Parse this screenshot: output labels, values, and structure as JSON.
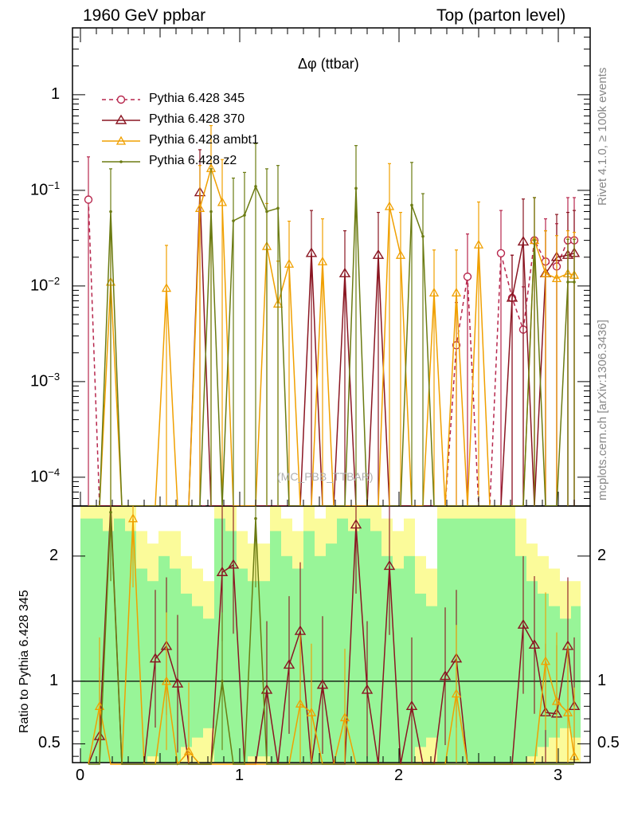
{
  "header": {
    "left": "1960 GeV ppbar",
    "right": "Top (parton level)"
  },
  "side": {
    "rivet": "Rivet 4.1.0, ≥ 100k events",
    "mcplots": "mcplots.cern.ch [arXiv:1306.3436]"
  },
  "colors": {
    "p345": "#b7274d",
    "p370": "#8a1622",
    "ambt1": "#f0a000",
    "z2": "#6b7b12",
    "band_green": "#98f598",
    "band_yellow": "#fbfb9a"
  },
  "chart_data": {
    "type": "line",
    "title": "Δφ (ttbar)",
    "analysis_tag": "(MC_PBB_TTBAR)",
    "xlabel": "",
    "ylabel_ratio": "Ratio to Pythia 6.428 345",
    "xlim": [
      -0.05,
      3.2
    ],
    "ylim": [
      5e-05,
      5
    ],
    "yscale": "log",
    "ratio_ylim": [
      0.35,
      2.4
    ],
    "x_ticks": [
      "0",
      "1",
      "2",
      "3"
    ],
    "y_ticks": [
      "10^-4",
      "10^-3",
      "10^-2",
      "10^-1",
      "1"
    ],
    "ratio_ticks": [
      "0.5",
      "1",
      "2"
    ],
    "legend_position": "top-left",
    "x": [
      0.05,
      0.12,
      0.19,
      0.26,
      0.33,
      0.4,
      0.47,
      0.54,
      0.61,
      0.68,
      0.75,
      0.82,
      0.89,
      0.96,
      1.03,
      1.1,
      1.17,
      1.24,
      1.31,
      1.38,
      1.45,
      1.52,
      1.59,
      1.66,
      1.73,
      1.8,
      1.87,
      1.94,
      2.01,
      2.08,
      2.15,
      2.22,
      2.29,
      2.36,
      2.43,
      2.5,
      2.57,
      2.64,
      2.71,
      2.78,
      2.85,
      2.92,
      2.99,
      3.06,
      3.1
    ],
    "series": [
      {
        "name": "Pythia 6.428 345",
        "style": "dashed",
        "marker": "circle",
        "values": [
          0.08,
          0,
          0,
          0,
          0,
          0,
          0,
          0,
          0,
          0,
          0,
          0,
          0,
          0,
          0,
          0,
          0,
          0,
          0,
          0,
          0,
          0,
          0,
          0,
          0,
          0,
          0,
          0,
          0,
          0,
          0,
          0,
          0,
          0.0024,
          0.0125,
          0,
          0,
          0.022,
          0.0075,
          0.0035,
          0.03,
          0.018,
          0.016,
          0.03,
          0.03
        ]
      },
      {
        "name": "Pythia 6.428 370",
        "style": "solid",
        "marker": "triangle-open",
        "values": [
          0,
          0,
          0,
          0,
          0,
          0,
          0,
          0,
          0,
          0,
          0.095,
          0,
          0,
          0,
          0,
          0,
          0,
          0,
          0,
          0,
          0.022,
          0,
          0,
          0.0135,
          0,
          0,
          0.021,
          0,
          0,
          0,
          0,
          0,
          0,
          0,
          0,
          0,
          0,
          0,
          0.0075,
          0.029,
          0,
          0.0135,
          0.02,
          0.021,
          0.022
        ]
      },
      {
        "name": "Pythia 6.428 ambt1",
        "style": "solid",
        "marker": "triangle",
        "values": [
          0,
          0,
          0.011,
          0,
          0,
          0,
          0,
          0.0095,
          0,
          0,
          0.065,
          0.17,
          0.075,
          0,
          0,
          0,
          0.026,
          0.0065,
          0.017,
          0,
          0,
          0.018,
          0,
          0,
          0,
          0,
          0,
          0.068,
          0.021,
          0,
          0,
          0.0085,
          0,
          0.0085,
          0,
          0.027,
          0,
          0,
          0,
          0,
          0.03,
          0.0135,
          0.012,
          0.0135,
          0.013
        ]
      },
      {
        "name": "Pythia 6.428 z2",
        "style": "solid",
        "marker": "dot",
        "values": [
          0,
          0,
          0.06,
          0,
          0,
          0,
          0,
          0,
          0,
          0,
          0,
          0.06,
          0,
          0.048,
          0.055,
          0.11,
          0.06,
          0.065,
          0,
          0,
          0,
          0,
          0,
          0,
          0.105,
          0,
          0,
          0,
          0,
          0.07,
          0.033,
          0,
          0,
          0,
          0,
          0,
          0,
          0,
          0,
          0,
          0.03,
          0,
          0,
          0.011,
          0.011
        ]
      }
    ],
    "ratio_series": {
      "Pythia 6.428 370": [
        0,
        0.56,
        2.4,
        0,
        0,
        0,
        1.18,
        1.28,
        0.98,
        0,
        0,
        0,
        1.87,
        1.93,
        0,
        0,
        0.93,
        0,
        1.13,
        1.4,
        0,
        0.97,
        0,
        0,
        2.25,
        0.93,
        0,
        1.92,
        0,
        0.8,
        0,
        0,
        1.04,
        1.18,
        0,
        0,
        0,
        0,
        0,
        1.45,
        1.29,
        0.75,
        0.74,
        1.28,
        0.8
      ],
      "Pythia 6.428 ambt1": [
        0,
        0.8,
        0,
        0,
        2.3,
        0,
        0,
        1.0,
        0,
        0.44,
        0,
        0,
        0,
        0,
        0,
        0,
        0,
        0,
        0,
        0.82,
        0.75,
        0,
        0,
        0.71,
        0,
        0,
        0,
        0,
        0,
        0,
        0,
        0,
        0,
        0.9,
        0,
        0,
        0,
        0,
        0,
        0,
        0,
        1.16,
        0.84,
        0.75,
        0.4
      ],
      "Pythia 6.428 z2": [
        0,
        0,
        2.35,
        0,
        0,
        0,
        0,
        0,
        0,
        0,
        0,
        0,
        1.0,
        0,
        0,
        2.3,
        0,
        0,
        0,
        0,
        0,
        0,
        0,
        0,
        0,
        0,
        0,
        0,
        0,
        0,
        0,
        0,
        0,
        0,
        0,
        0,
        0,
        0,
        0,
        0,
        0,
        0,
        0,
        0,
        0
      ]
    },
    "ratio_band": {
      "x_edges": [
        0.0,
        0.07,
        0.14,
        0.21,
        0.28,
        0.35,
        0.42,
        0.49,
        0.56,
        0.63,
        0.7,
        0.77,
        0.84,
        0.91,
        0.98,
        1.05,
        1.12,
        1.19,
        1.26,
        1.33,
        1.4,
        1.47,
        1.54,
        1.61,
        1.68,
        1.75,
        1.82,
        1.89,
        1.96,
        2.03,
        2.1,
        2.17,
        2.24,
        2.31,
        2.38,
        2.45,
        2.52,
        2.59,
        2.66,
        2.73,
        2.8,
        2.87,
        2.94,
        3.01,
        3.08,
        3.14
      ],
      "green_half_width": [
        1.3,
        1.3,
        1.2,
        1.3,
        1.2,
        0.9,
        0.8,
        1.0,
        0.9,
        0.7,
        0.6,
        0.5,
        1.3,
        1.2,
        0.9,
        0.8,
        0.8,
        1.2,
        1.0,
        0.9,
        1.2,
        1.0,
        1.1,
        1.3,
        1.2,
        1.3,
        1.2,
        1.0,
        0.9,
        1.0,
        0.7,
        0.6,
        1.3,
        1.3,
        1.3,
        1.3,
        1.3,
        1.3,
        1.3,
        1.0,
        0.8,
        0.7,
        0.6,
        0.5,
        0.6,
        0.6
      ],
      "yellow_half_width": [
        1.4,
        1.4,
        1.4,
        1.4,
        1.4,
        1.2,
        1.1,
        1.2,
        1.2,
        1.0,
        0.9,
        0.8,
        1.4,
        1.4,
        1.2,
        1.1,
        1.1,
        1.4,
        1.3,
        1.2,
        1.4,
        1.3,
        1.4,
        1.4,
        1.4,
        1.4,
        1.4,
        1.3,
        1.2,
        1.3,
        1.0,
        0.9,
        1.4,
        1.4,
        1.4,
        1.4,
        1.4,
        1.4,
        1.4,
        1.3,
        1.1,
        1.0,
        0.9,
        0.8,
        0.8,
        0.8
      ]
    }
  }
}
